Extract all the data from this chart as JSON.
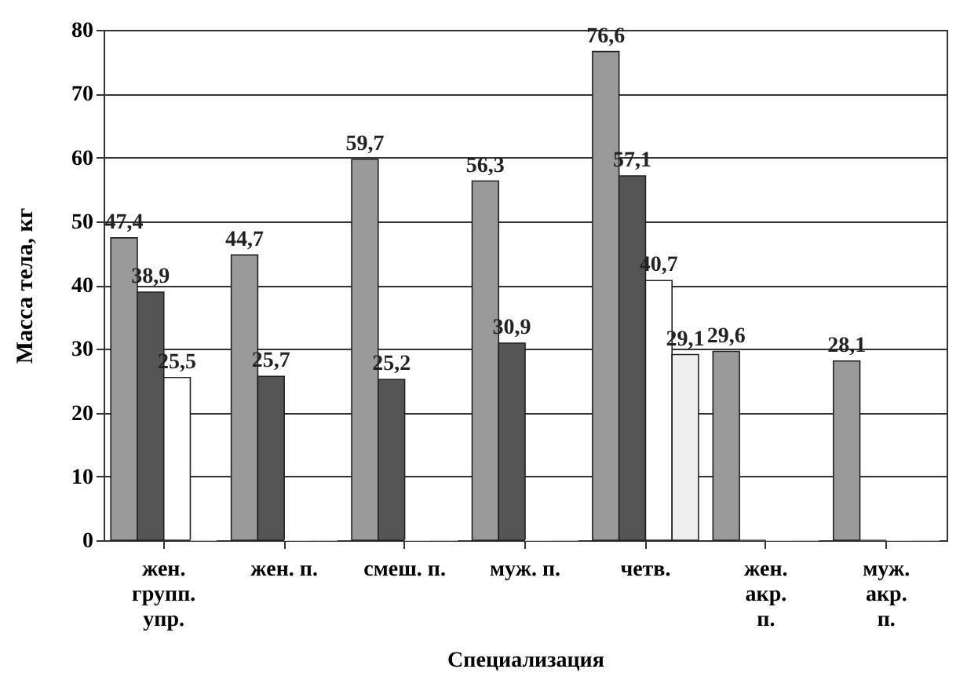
{
  "chart_data": {
    "type": "bar",
    "xlabel": "Специализация",
    "ylabel": "Масса тела, кг",
    "categories": [
      "жен. групп. упр.",
      "жен. п.",
      "смеш. п.",
      "муж. п.",
      "четв.",
      "жен. акр. п.",
      "муж. акр. п."
    ],
    "series": [
      {
        "color": "#9a9a9a",
        "values": [
          47.4,
          44.7,
          59.7,
          56.3,
          76.6,
          29.6,
          28.1
        ],
        "value_labels": [
          "47,4",
          "44,7",
          "59,7",
          "56,3",
          "76,6",
          "29,6",
          "28,1"
        ]
      },
      {
        "color": "#555555",
        "values": [
          38.9,
          25.7,
          25.2,
          30.9,
          57.1,
          0,
          0
        ],
        "value_labels": [
          "38,9",
          "25,7",
          "25,2",
          "30,9",
          "57,1",
          null,
          null
        ]
      },
      {
        "color": "#ffffff",
        "values": [
          25.5,
          0,
          0,
          0,
          40.7,
          0,
          0
        ],
        "value_labels": [
          "25,5",
          null,
          null,
          null,
          "40,7",
          null,
          null
        ]
      },
      {
        "color": "#eeeeee",
        "values": [
          0,
          0,
          0,
          0,
          29.1,
          0,
          0
        ],
        "value_labels": [
          null,
          null,
          null,
          null,
          "29,1",
          null,
          null
        ]
      }
    ],
    "ylim": [
      0,
      80
    ],
    "yticks": [
      0,
      10,
      20,
      30,
      40,
      50,
      60,
      70,
      80
    ],
    "grid": "y",
    "legend": false
  }
}
